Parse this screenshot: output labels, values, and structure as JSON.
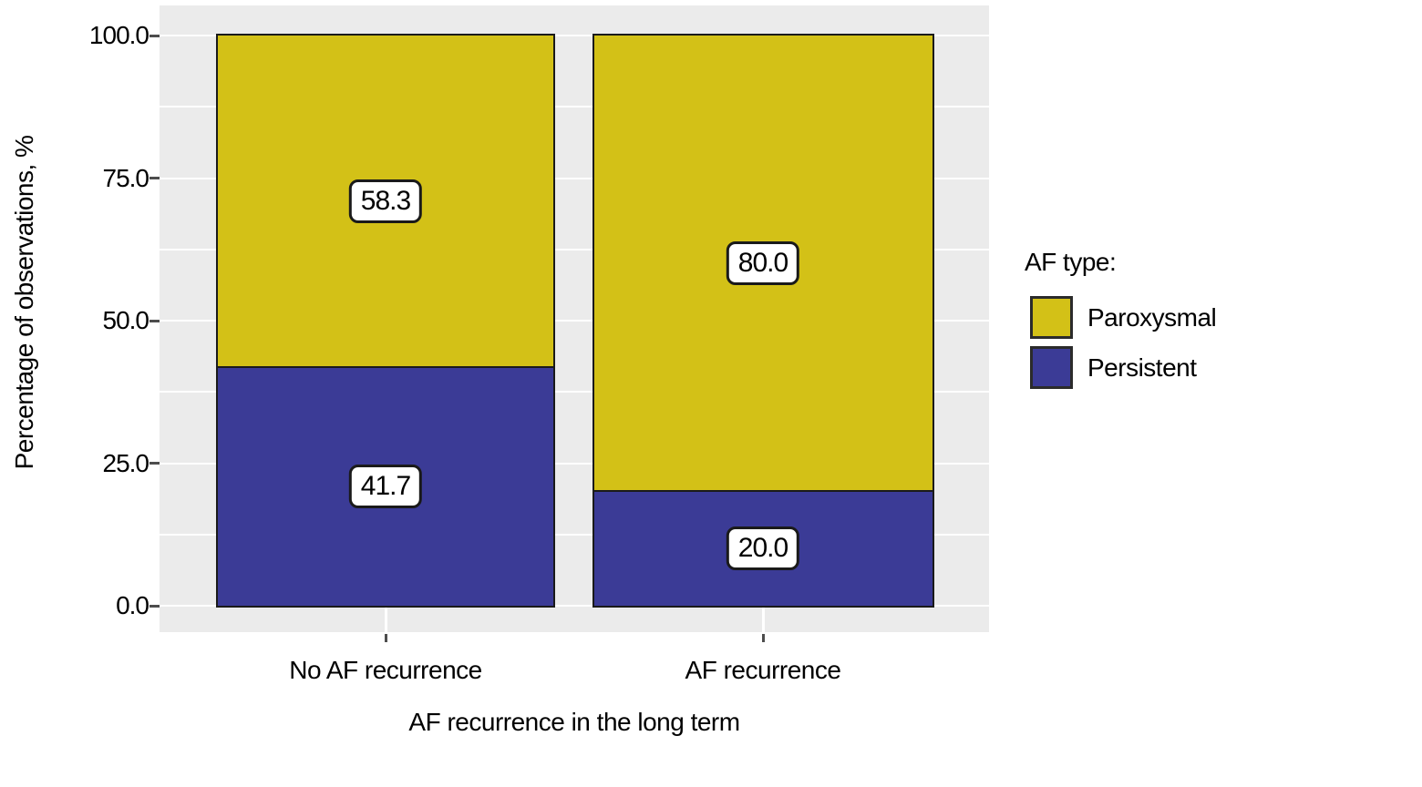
{
  "chart_data": {
    "type": "bar",
    "stacking": "percent",
    "title": "",
    "xlabel": "AF recurrence in the long term",
    "ylabel": "Percentage of observations, %",
    "categories": [
      "No AF recurrence",
      "AF recurrence"
    ],
    "series": [
      {
        "name": "Paroxysmal",
        "color": "#d3c117",
        "values": [
          58.3,
          80.0
        ],
        "labels": [
          "58.3",
          "80.0"
        ]
      },
      {
        "name": "Persistent",
        "color": "#3b3b96",
        "values": [
          41.7,
          20.0
        ],
        "labels": [
          "41.7",
          "20.0"
        ]
      }
    ],
    "ylim": [
      0,
      100
    ],
    "ytick_values": [
      0,
      25,
      50,
      75,
      100
    ],
    "ytick_labels": [
      "0.0",
      "25.0",
      "50.0",
      "75.0",
      "100.0"
    ],
    "minor_gridline_step": 12.5,
    "grid": true,
    "legend": {
      "title": "AF type:",
      "position": "right"
    },
    "colors": {
      "panel_bg": "#ebebeb",
      "gridline": "#ffffff",
      "bar_border": "#1a1a1a",
      "label_box_bg": "#ffffff",
      "tick": "#4d4d4d",
      "text": "#000000"
    }
  }
}
